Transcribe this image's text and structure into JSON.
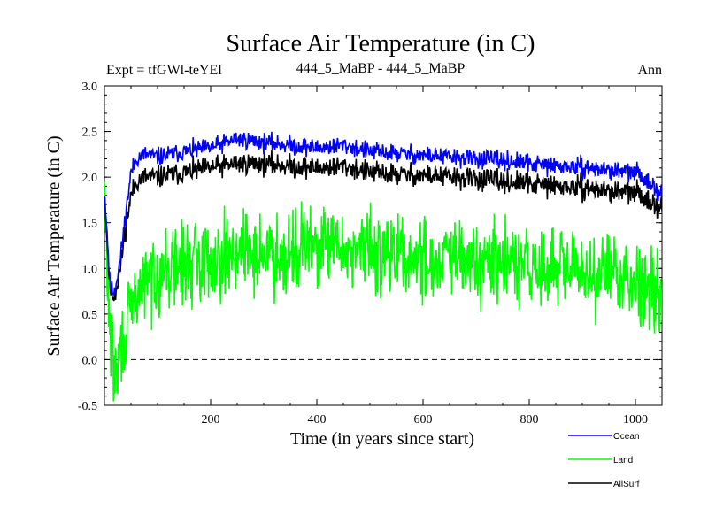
{
  "chart_data": {
    "type": "line",
    "title": "Surface Air Temperature (in C)",
    "subtitle_left": "Expt = tfGWl-teYEl",
    "subtitle_center": "444_5_MaBP - 444_5_MaBP",
    "subtitle_right": "Ann",
    "xlabel": "Time (in years since start)",
    "ylabel": "Surface Air Temperature (in C)",
    "xlim": [
      0,
      1050
    ],
    "ylim": [
      -0.5,
      3.0
    ],
    "xticks": [
      200,
      400,
      600,
      800,
      1000
    ],
    "yticks": [
      -0.5,
      0.0,
      0.5,
      1.0,
      1.5,
      2.0,
      2.5,
      3.0
    ],
    "ytick_labels": [
      "-0.5",
      "0.0",
      "0.5",
      "1.0",
      "1.5",
      "2.0",
      "2.5",
      "3.0"
    ],
    "reference_line": 0.0,
    "series": [
      {
        "name": "Ocean",
        "color": "#0000ff",
        "x": [
          0,
          5,
          10,
          15,
          20,
          30,
          40,
          50,
          60,
          75,
          100,
          150,
          200,
          250,
          300,
          350,
          400,
          450,
          500,
          550,
          600,
          650,
          700,
          750,
          800,
          850,
          900,
          950,
          1000,
          1030,
          1050
        ],
        "values": [
          1.85,
          1.4,
          0.85,
          0.75,
          0.78,
          1.1,
          1.6,
          2.05,
          2.2,
          2.25,
          2.22,
          2.28,
          2.32,
          2.42,
          2.38,
          2.35,
          2.32,
          2.35,
          2.28,
          2.26,
          2.24,
          2.22,
          2.2,
          2.18,
          2.15,
          2.12,
          2.1,
          2.08,
          2.05,
          1.95,
          1.8
        ],
        "noise": 0.05
      },
      {
        "name": "Land",
        "color": "#00ff00",
        "x": [
          0,
          5,
          10,
          15,
          20,
          25,
          30,
          40,
          50,
          60,
          75,
          100,
          150,
          200,
          250,
          300,
          350,
          400,
          450,
          500,
          550,
          600,
          650,
          700,
          750,
          800,
          850,
          900,
          950,
          1000,
          1030,
          1050
        ],
        "values": [
          1.8,
          1.0,
          0.4,
          0.05,
          -0.2,
          -0.1,
          0.1,
          0.3,
          0.5,
          0.7,
          0.85,
          0.95,
          1.05,
          1.1,
          1.2,
          1.15,
          1.2,
          1.25,
          1.2,
          1.2,
          1.15,
          1.1,
          1.1,
          1.05,
          1.05,
          1.0,
          1.0,
          0.95,
          0.95,
          0.9,
          0.8,
          0.75
        ],
        "noise": 0.22
      },
      {
        "name": "AllSurf",
        "color": "#000000",
        "x": [
          0,
          5,
          10,
          15,
          20,
          30,
          40,
          50,
          60,
          75,
          100,
          150,
          200,
          250,
          300,
          350,
          400,
          450,
          500,
          550,
          600,
          650,
          700,
          750,
          800,
          850,
          900,
          950,
          1000,
          1030,
          1050
        ],
        "values": [
          1.85,
          1.3,
          0.8,
          0.7,
          0.72,
          1.0,
          1.45,
          1.8,
          1.95,
          2.0,
          2.0,
          2.05,
          2.1,
          2.15,
          2.15,
          2.12,
          2.1,
          2.12,
          2.05,
          2.03,
          2.02,
          2.0,
          1.98,
          1.95,
          1.93,
          1.9,
          1.88,
          1.85,
          1.83,
          1.75,
          1.65
        ],
        "noise": 0.06
      }
    ],
    "legend": [
      "Ocean",
      "Land",
      "AllSurf"
    ],
    "legend_position": "bottom-right"
  }
}
